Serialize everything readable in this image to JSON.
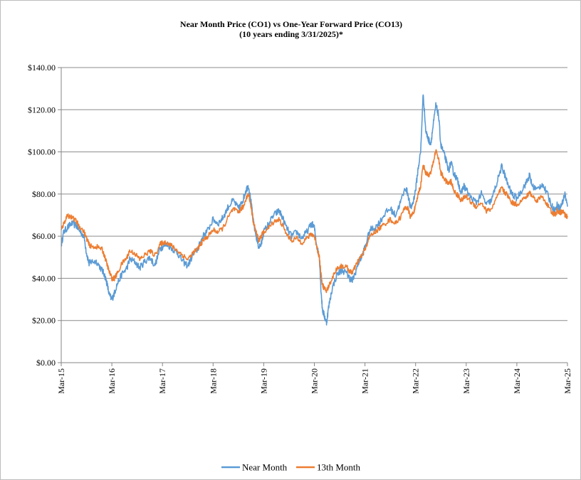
{
  "chart_data": {
    "type": "line",
    "title": "Near Month Price (CO1) vs One-Year Forward  Price  (CO13)",
    "subtitle": "(10 years ending 3/31/2025)*",
    "xlabel": "",
    "ylabel": "",
    "ylim": [
      0,
      140
    ],
    "yticks": [
      "$0.00",
      "$20.00",
      "$40.00",
      "$60.00",
      "$80.00",
      "$100.00",
      "$120.00",
      "$140.00"
    ],
    "ytick_values": [
      0,
      20,
      40,
      60,
      80,
      100,
      120,
      140
    ],
    "xticks": [
      "Mar-15",
      "Mar-16",
      "Mar-17",
      "Mar-18",
      "Mar-19",
      "Mar-20",
      "Mar-21",
      "Mar-22",
      "Mar-23",
      "Mar-24",
      "Mar-25"
    ],
    "xlim": [
      2015.0,
      2025.0
    ],
    "grid": "horizontal",
    "legend": "bottom-center",
    "series": [
      {
        "name": "Near Month",
        "color": "#5b9bd5",
        "points": [
          [
            2015.0,
            56
          ],
          [
            2015.05,
            62
          ],
          [
            2015.12,
            64
          ],
          [
            2015.2,
            66
          ],
          [
            2015.3,
            65
          ],
          [
            2015.35,
            63
          ],
          [
            2015.45,
            60
          ],
          [
            2015.5,
            52
          ],
          [
            2015.55,
            47
          ],
          [
            2015.6,
            48
          ],
          [
            2015.7,
            48
          ],
          [
            2015.8,
            44
          ],
          [
            2015.85,
            42
          ],
          [
            2015.9,
            38
          ],
          [
            2015.95,
            32
          ],
          [
            2016.0,
            30
          ],
          [
            2016.05,
            33
          ],
          [
            2016.1,
            37
          ],
          [
            2016.2,
            42
          ],
          [
            2016.3,
            45
          ],
          [
            2016.35,
            49
          ],
          [
            2016.45,
            48
          ],
          [
            2016.55,
            45
          ],
          [
            2016.65,
            48
          ],
          [
            2016.75,
            50
          ],
          [
            2016.85,
            46
          ],
          [
            2016.95,
            54
          ],
          [
            2017.0,
            55
          ],
          [
            2017.1,
            56
          ],
          [
            2017.2,
            54
          ],
          [
            2017.3,
            52
          ],
          [
            2017.4,
            48
          ],
          [
            2017.5,
            46
          ],
          [
            2017.6,
            51
          ],
          [
            2017.7,
            54
          ],
          [
            2017.75,
            57
          ],
          [
            2017.8,
            60
          ],
          [
            2017.9,
            63
          ],
          [
            2018.0,
            68
          ],
          [
            2018.1,
            66
          ],
          [
            2018.2,
            69
          ],
          [
            2018.3,
            74
          ],
          [
            2018.4,
            77
          ],
          [
            2018.5,
            73
          ],
          [
            2018.55,
            75
          ],
          [
            2018.6,
            78
          ],
          [
            2018.65,
            82
          ],
          [
            2018.7,
            84
          ],
          [
            2018.75,
            76
          ],
          [
            2018.8,
            66
          ],
          [
            2018.85,
            60
          ],
          [
            2018.9,
            55
          ],
          [
            2018.95,
            56
          ],
          [
            2019.0,
            62
          ],
          [
            2019.1,
            66
          ],
          [
            2019.2,
            70
          ],
          [
            2019.3,
            72
          ],
          [
            2019.35,
            70
          ],
          [
            2019.45,
            64
          ],
          [
            2019.55,
            60
          ],
          [
            2019.65,
            62
          ],
          [
            2019.75,
            59
          ],
          [
            2019.85,
            62
          ],
          [
            2019.95,
            66
          ],
          [
            2020.0,
            64
          ],
          [
            2020.05,
            55
          ],
          [
            2020.1,
            50
          ],
          [
            2020.13,
            35
          ],
          [
            2020.16,
            25
          ],
          [
            2020.2,
            22
          ],
          [
            2020.24,
            19
          ],
          [
            2020.28,
            26
          ],
          [
            2020.35,
            35
          ],
          [
            2020.45,
            42
          ],
          [
            2020.55,
            44
          ],
          [
            2020.65,
            42
          ],
          [
            2020.7,
            40
          ],
          [
            2020.75,
            39
          ],
          [
            2020.8,
            42
          ],
          [
            2020.88,
            48
          ],
          [
            2020.95,
            51
          ],
          [
            2021.0,
            55
          ],
          [
            2021.1,
            63
          ],
          [
            2021.2,
            64
          ],
          [
            2021.3,
            67
          ],
          [
            2021.4,
            71
          ],
          [
            2021.5,
            73
          ],
          [
            2021.6,
            70
          ],
          [
            2021.7,
            76
          ],
          [
            2021.8,
            83
          ],
          [
            2021.85,
            80
          ],
          [
            2021.9,
            73
          ],
          [
            2021.95,
            76
          ],
          [
            2022.0,
            82
          ],
          [
            2022.05,
            92
          ],
          [
            2022.1,
            100
          ],
          [
            2022.15,
            128
          ],
          [
            2022.2,
            110
          ],
          [
            2022.25,
            106
          ],
          [
            2022.3,
            104
          ],
          [
            2022.35,
            113
          ],
          [
            2022.4,
            122
          ],
          [
            2022.45,
            118
          ],
          [
            2022.5,
            103
          ],
          [
            2022.55,
            100
          ],
          [
            2022.6,
            96
          ],
          [
            2022.65,
            91
          ],
          [
            2022.7,
            95
          ],
          [
            2022.75,
            90
          ],
          [
            2022.8,
            88
          ],
          [
            2022.85,
            85
          ],
          [
            2022.9,
            80
          ],
          [
            2022.95,
            84
          ],
          [
            2023.0,
            82
          ],
          [
            2023.1,
            78
          ],
          [
            2023.2,
            76
          ],
          [
            2023.3,
            80
          ],
          [
            2023.4,
            75
          ],
          [
            2023.5,
            77
          ],
          [
            2023.6,
            85
          ],
          [
            2023.7,
            93
          ],
          [
            2023.75,
            90
          ],
          [
            2023.8,
            86
          ],
          [
            2023.9,
            80
          ],
          [
            2024.0,
            78
          ],
          [
            2024.1,
            82
          ],
          [
            2024.2,
            86
          ],
          [
            2024.25,
            89
          ],
          [
            2024.3,
            84
          ],
          [
            2024.4,
            82
          ],
          [
            2024.5,
            85
          ],
          [
            2024.6,
            80
          ],
          [
            2024.7,
            74
          ],
          [
            2024.75,
            72
          ],
          [
            2024.8,
            75
          ],
          [
            2024.85,
            73
          ],
          [
            2024.9,
            76
          ],
          [
            2024.95,
            80
          ],
          [
            2025.0,
            74
          ]
        ]
      },
      {
        "name": "13th Month",
        "color": "#ed7d31",
        "points": [
          [
            2015.0,
            63
          ],
          [
            2015.05,
            66
          ],
          [
            2015.12,
            70
          ],
          [
            2015.2,
            69
          ],
          [
            2015.3,
            67
          ],
          [
            2015.35,
            65
          ],
          [
            2015.45,
            62
          ],
          [
            2015.5,
            59
          ],
          [
            2015.55,
            56
          ],
          [
            2015.6,
            55
          ],
          [
            2015.7,
            55
          ],
          [
            2015.8,
            54
          ],
          [
            2015.85,
            51
          ],
          [
            2015.9,
            47
          ],
          [
            2015.95,
            43
          ],
          [
            2016.0,
            40
          ],
          [
            2016.05,
            40
          ],
          [
            2016.1,
            42
          ],
          [
            2016.2,
            47
          ],
          [
            2016.3,
            50
          ],
          [
            2016.35,
            53
          ],
          [
            2016.45,
            52
          ],
          [
            2016.55,
            49
          ],
          [
            2016.65,
            51
          ],
          [
            2016.75,
            53
          ],
          [
            2016.85,
            51
          ],
          [
            2016.95,
            56
          ],
          [
            2017.0,
            57
          ],
          [
            2017.1,
            57
          ],
          [
            2017.2,
            55
          ],
          [
            2017.3,
            53
          ],
          [
            2017.4,
            51
          ],
          [
            2017.5,
            49
          ],
          [
            2017.6,
            52
          ],
          [
            2017.7,
            54
          ],
          [
            2017.75,
            56
          ],
          [
            2017.8,
            58
          ],
          [
            2017.9,
            60
          ],
          [
            2018.0,
            63
          ],
          [
            2018.1,
            62
          ],
          [
            2018.2,
            64
          ],
          [
            2018.3,
            69
          ],
          [
            2018.4,
            73
          ],
          [
            2018.5,
            71
          ],
          [
            2018.55,
            73
          ],
          [
            2018.6,
            74
          ],
          [
            2018.65,
            78
          ],
          [
            2018.7,
            80
          ],
          [
            2018.75,
            74
          ],
          [
            2018.8,
            66
          ],
          [
            2018.85,
            62
          ],
          [
            2018.9,
            58
          ],
          [
            2018.95,
            60
          ],
          [
            2019.0,
            62
          ],
          [
            2019.1,
            64
          ],
          [
            2019.2,
            67
          ],
          [
            2019.3,
            68
          ],
          [
            2019.35,
            66
          ],
          [
            2019.45,
            61
          ],
          [
            2019.55,
            58
          ],
          [
            2019.65,
            59
          ],
          [
            2019.75,
            57
          ],
          [
            2019.85,
            59
          ],
          [
            2019.95,
            61
          ],
          [
            2020.0,
            60
          ],
          [
            2020.05,
            55
          ],
          [
            2020.1,
            50
          ],
          [
            2020.13,
            42
          ],
          [
            2020.16,
            37
          ],
          [
            2020.2,
            35
          ],
          [
            2020.24,
            34
          ],
          [
            2020.28,
            36
          ],
          [
            2020.35,
            40
          ],
          [
            2020.45,
            45
          ],
          [
            2020.55,
            46
          ],
          [
            2020.65,
            45
          ],
          [
            2020.7,
            43
          ],
          [
            2020.75,
            43
          ],
          [
            2020.8,
            45
          ],
          [
            2020.88,
            49
          ],
          [
            2020.95,
            51
          ],
          [
            2021.0,
            54
          ],
          [
            2021.1,
            60
          ],
          [
            2021.2,
            62
          ],
          [
            2021.3,
            64
          ],
          [
            2021.4,
            66
          ],
          [
            2021.5,
            68
          ],
          [
            2021.6,
            66
          ],
          [
            2021.7,
            69
          ],
          [
            2021.8,
            74
          ],
          [
            2021.85,
            73
          ],
          [
            2021.9,
            69
          ],
          [
            2021.95,
            71
          ],
          [
            2022.0,
            74
          ],
          [
            2022.05,
            80
          ],
          [
            2022.1,
            84
          ],
          [
            2022.15,
            94
          ],
          [
            2022.2,
            90
          ],
          [
            2022.25,
            89
          ],
          [
            2022.3,
            90
          ],
          [
            2022.35,
            95
          ],
          [
            2022.4,
            101
          ],
          [
            2022.45,
            97
          ],
          [
            2022.5,
            90
          ],
          [
            2022.55,
            88
          ],
          [
            2022.6,
            86
          ],
          [
            2022.65,
            85
          ],
          [
            2022.7,
            86
          ],
          [
            2022.75,
            82
          ],
          [
            2022.8,
            80
          ],
          [
            2022.85,
            79
          ],
          [
            2022.9,
            77
          ],
          [
            2022.95,
            78
          ],
          [
            2023.0,
            79
          ],
          [
            2023.1,
            76
          ],
          [
            2023.2,
            74
          ],
          [
            2023.3,
            76
          ],
          [
            2023.4,
            72
          ],
          [
            2023.5,
            73
          ],
          [
            2023.6,
            78
          ],
          [
            2023.7,
            83
          ],
          [
            2023.75,
            81
          ],
          [
            2023.8,
            80
          ],
          [
            2023.9,
            76
          ],
          [
            2024.0,
            75
          ],
          [
            2024.1,
            77
          ],
          [
            2024.2,
            79
          ],
          [
            2024.25,
            81
          ],
          [
            2024.3,
            79
          ],
          [
            2024.4,
            77
          ],
          [
            2024.5,
            79
          ],
          [
            2024.6,
            75
          ],
          [
            2024.7,
            71
          ],
          [
            2024.75,
            70
          ],
          [
            2024.8,
            72
          ],
          [
            2024.85,
            71
          ],
          [
            2024.9,
            72
          ],
          [
            2024.95,
            70
          ],
          [
            2025.0,
            69
          ]
        ]
      }
    ]
  }
}
